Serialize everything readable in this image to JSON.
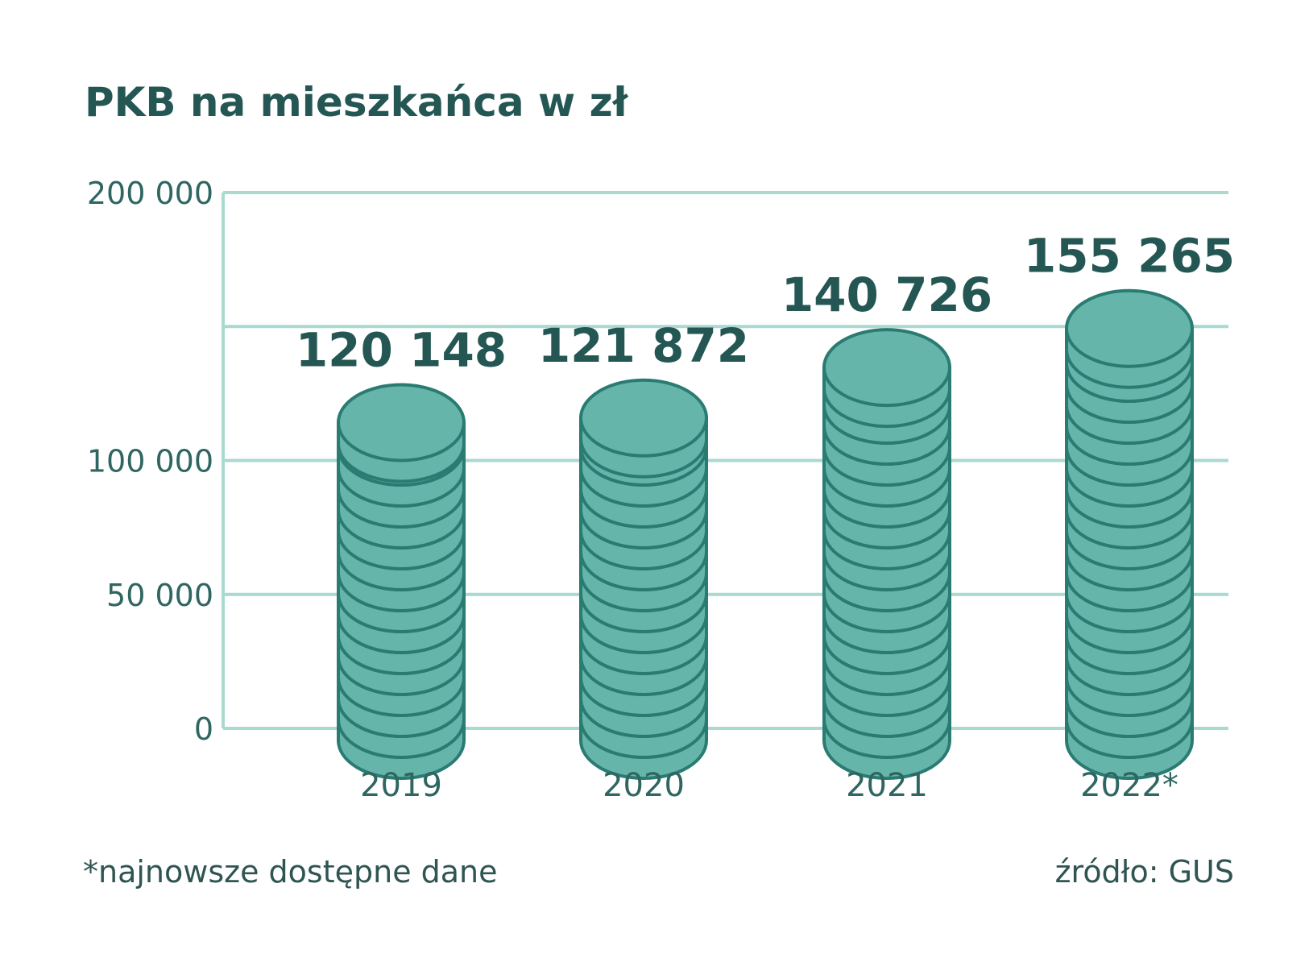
{
  "chart_data": {
    "type": "bar",
    "title": "PKB na mieszkańca w zł",
    "categories": [
      "2019",
      "2020",
      "2021",
      "2022*"
    ],
    "values": [
      120148,
      121872,
      140726,
      155265
    ],
    "value_labels": [
      "120 148",
      "121 872",
      "140 726",
      "155 265"
    ],
    "ylim": [
      0,
      200000
    ],
    "yticks": [
      0,
      50000,
      100000,
      150000,
      200000
    ],
    "ytick_labels": [
      "0",
      "50 000",
      "100 000",
      "",
      "200 000"
    ],
    "grid": true,
    "xlabel": "",
    "ylabel": ""
  },
  "footnote": "*najnowsze dostępne dane",
  "source": "źródło: GUS",
  "colors": {
    "coin_fill": "#66b5ab",
    "coin_stroke": "#2a7b72",
    "grid": "#a9d9cf",
    "text_dark": "#245753"
  }
}
